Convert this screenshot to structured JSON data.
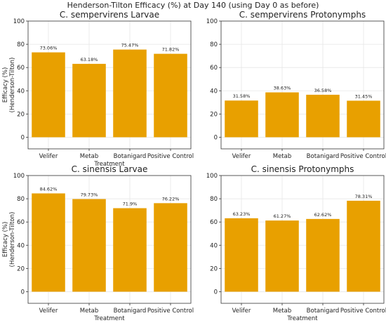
{
  "suptitle": "Henderson-Tilton Efficacy (%) at Day 140 (using Day 0 as before)",
  "chart_data": [
    {
      "type": "bar",
      "title": "C. sempervirens Larvae",
      "categories": [
        "Velifer",
        "Metab",
        "Botanigard",
        "Positive Control"
      ],
      "values": [
        73.06,
        63.18,
        75.47,
        71.82
      ],
      "value_labels": [
        "73.06%",
        "63.18%",
        "75.47%",
        "71.82%"
      ],
      "xlabel": "Treatment",
      "ylabel": [
        "Efficacy (%)",
        "(Henderson-Tilton)"
      ],
      "ylim": [
        -10,
        100
      ],
      "yticks": [
        0,
        20,
        40,
        60,
        80,
        100
      ],
      "grid": true,
      "color": "#e8a000"
    },
    {
      "type": "bar",
      "title": "C. sempervirens Protonymphs",
      "categories": [
        "Velifer",
        "Metab",
        "Botanigard",
        "Positive Control"
      ],
      "values": [
        31.58,
        38.63,
        36.58,
        31.45
      ],
      "value_labels": [
        "31.58%",
        "38.63%",
        "36.58%",
        "31.45%"
      ],
      "xlabel": "",
      "ylabel": [
        "",
        ""
      ],
      "ylim": [
        -10,
        100
      ],
      "yticks": [
        0,
        20,
        40,
        60,
        80,
        100
      ],
      "grid": true,
      "color": "#e8a000"
    },
    {
      "type": "bar",
      "title": "C. sinensis Larvae",
      "categories": [
        "Velifer",
        "Metab",
        "Botanigard",
        "Positive Control"
      ],
      "values": [
        84.62,
        79.73,
        71.9,
        76.22
      ],
      "value_labels": [
        "84.62%",
        "79.73%",
        "71.9%",
        "76.22%"
      ],
      "xlabel": "Treatment",
      "ylabel": [
        "Efficacy (%)",
        "(Henderson-Tilton)"
      ],
      "ylim": [
        -10,
        100
      ],
      "yticks": [
        0,
        20,
        40,
        60,
        80,
        100
      ],
      "grid": true,
      "color": "#e8a000"
    },
    {
      "type": "bar",
      "title": "C. sinensis Protonymphs",
      "categories": [
        "Velifer",
        "Metab",
        "Botanigard",
        "Positive Control"
      ],
      "values": [
        63.23,
        61.27,
        62.62,
        78.31
      ],
      "value_labels": [
        "63.23%",
        "61.27%",
        "62.62%",
        "78.31%"
      ],
      "xlabel": "Treatment",
      "ylabel": [
        "",
        ""
      ],
      "ylim": [
        -10,
        100
      ],
      "yticks": [
        0,
        20,
        40,
        60,
        80,
        100
      ],
      "grid": true,
      "color": "#e8a000"
    }
  ]
}
